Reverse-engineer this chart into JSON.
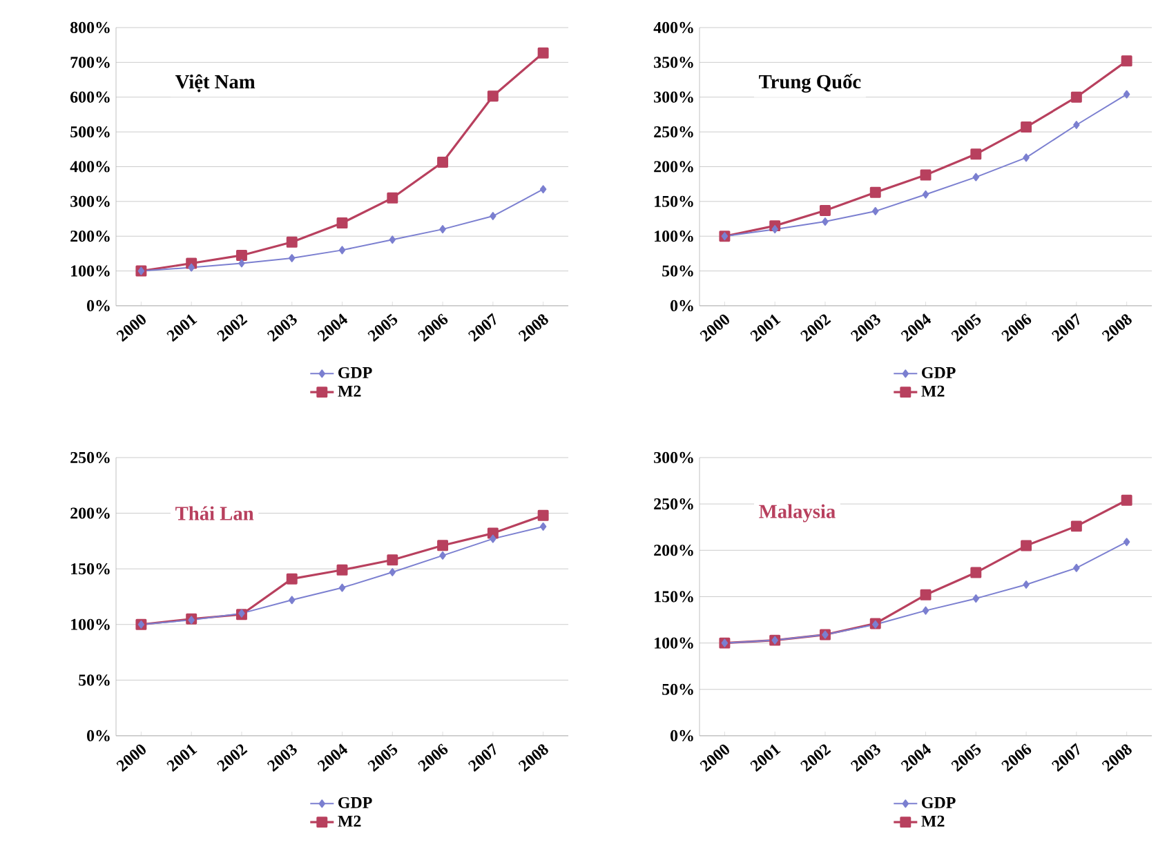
{
  "chart_data": [
    {
      "type": "line",
      "title": "Việt Nam",
      "categories": [
        "2000",
        "2001",
        "2002",
        "2003",
        "2004",
        "2005",
        "2006",
        "2007",
        "2008"
      ],
      "ylim": [
        0,
        800
      ],
      "yticks": [
        {
          "value": 0,
          "label": "0%"
        },
        {
          "value": 100,
          "label": "100%"
        },
        {
          "value": 200,
          "label": "200%"
        },
        {
          "value": 300,
          "label": "300%"
        },
        {
          "value": 400,
          "label": "400%"
        },
        {
          "value": 500,
          "label": "500%"
        },
        {
          "value": 600,
          "label": "600%"
        },
        {
          "value": 700,
          "label": "700%"
        },
        {
          "value": 800,
          "label": "800%"
        }
      ],
      "grid": "y",
      "legend": "bottom",
      "series": [
        {
          "name": "GDP",
          "color": "#7b7fd0",
          "marker": "diamond",
          "values": [
            100,
            110,
            122,
            137,
            160,
            190,
            220,
            258,
            335
          ]
        },
        {
          "name": "M2",
          "color": "#b8405e",
          "marker": "square",
          "values": [
            100,
            122,
            145,
            183,
            238,
            310,
            413,
            603,
            727
          ]
        }
      ]
    },
    {
      "type": "line",
      "title": "Trung Quốc",
      "categories": [
        "2000",
        "2001",
        "2002",
        "2003",
        "2004",
        "2005",
        "2006",
        "2007",
        "2008"
      ],
      "ylim": [
        0,
        400
      ],
      "yticks": [
        {
          "value": 0,
          "label": "0%"
        },
        {
          "value": 50,
          "label": "50%"
        },
        {
          "value": 100,
          "label": "100%"
        },
        {
          "value": 150,
          "label": "150%"
        },
        {
          "value": 200,
          "label": "200%"
        },
        {
          "value": 250,
          "label": "250%"
        },
        {
          "value": 300,
          "label": "300%"
        },
        {
          "value": 350,
          "label": "350%"
        },
        {
          "value": 400,
          "label": "400%"
        }
      ],
      "grid": "y",
      "legend": "bottom",
      "series": [
        {
          "name": "GDP",
          "color": "#7b7fd0",
          "marker": "diamond",
          "values": [
            100,
            110,
            121,
            136,
            160,
            185,
            213,
            260,
            304
          ]
        },
        {
          "name": "M2",
          "color": "#b8405e",
          "marker": "square",
          "values": [
            100,
            115,
            137,
            163,
            188,
            218,
            257,
            300,
            352
          ]
        }
      ]
    },
    {
      "type": "line",
      "title": "Thái Lan",
      "categories": [
        "2000",
        "2001",
        "2002",
        "2003",
        "2004",
        "2005",
        "2006",
        "2007",
        "2008"
      ],
      "ylim": [
        0,
        250
      ],
      "yticks": [
        {
          "value": 0,
          "label": "0%"
        },
        {
          "value": 50,
          "label": "50%"
        },
        {
          "value": 100,
          "label": "100%"
        },
        {
          "value": 150,
          "label": "150%"
        },
        {
          "value": 200,
          "label": "200%"
        },
        {
          "value": 250,
          "label": "250%"
        }
      ],
      "grid": "y",
      "legend": "bottom",
      "series": [
        {
          "name": "GDP",
          "color": "#7b7fd0",
          "marker": "diamond",
          "values": [
            100,
            104,
            110,
            122,
            133,
            147,
            162,
            177,
            188
          ]
        },
        {
          "name": "M2",
          "color": "#b8405e",
          "marker": "square",
          "values": [
            100,
            105,
            109,
            141,
            149,
            158,
            171,
            182,
            198
          ]
        }
      ]
    },
    {
      "type": "line",
      "title": "Malaysia",
      "categories": [
        "2000",
        "2001",
        "2002",
        "2003",
        "2004",
        "2005",
        "2006",
        "2007",
        "2008"
      ],
      "ylim": [
        0,
        300
      ],
      "yticks": [
        {
          "value": 0,
          "label": "0%"
        },
        {
          "value": 50,
          "label": "50%"
        },
        {
          "value": 100,
          "label": "100%"
        },
        {
          "value": 150,
          "label": "150%"
        },
        {
          "value": 200,
          "label": "200%"
        },
        {
          "value": 250,
          "label": "250%"
        },
        {
          "value": 300,
          "label": "300%"
        }
      ],
      "grid": "y",
      "legend": "bottom",
      "series": [
        {
          "name": "GDP",
          "color": "#7b7fd0",
          "marker": "diamond",
          "values": [
            100,
            103,
            109,
            120,
            135,
            148,
            163,
            181,
            209
          ]
        },
        {
          "name": "M2",
          "color": "#b8405e",
          "marker": "square",
          "values": [
            100,
            103,
            109,
            121,
            152,
            176,
            205,
            226,
            254
          ]
        }
      ]
    }
  ]
}
